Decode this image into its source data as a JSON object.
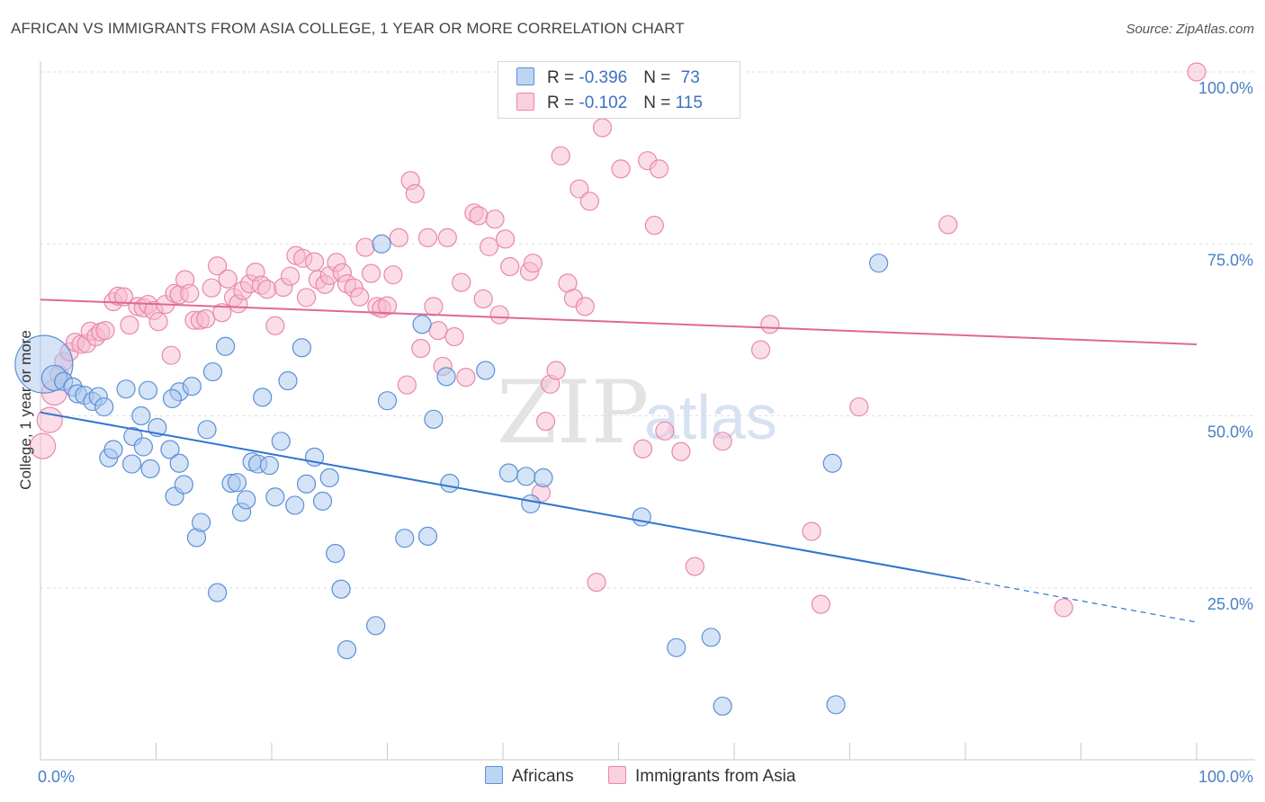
{
  "header": {
    "title": "AFRICAN VS IMMIGRANTS FROM ASIA COLLEGE, 1 YEAR OR MORE CORRELATION CHART",
    "source": "Source: ZipAtlas.com"
  },
  "legend": {
    "rows": [
      {
        "r_label": "R = ",
        "r_value": "-0.396",
        "n_label": "N = ",
        "n_value": "73"
      },
      {
        "r_label": "R = ",
        "r_value": "-0.102",
        "n_label": "N = ",
        "n_value": "115"
      }
    ]
  },
  "bottom_legend": {
    "africans": "Africans",
    "asia": "Immigrants from Asia"
  },
  "watermark": {
    "zip": "ZIP",
    "atlas": "atlas"
  },
  "colors": {
    "africans_fill": "#a9c8ee",
    "africans_stroke": "#5a8fd6",
    "africans_line": "#2f74d0",
    "asia_fill": "#f7bcd0",
    "asia_stroke": "#e987a8",
    "asia_line": "#e0679a",
    "grid": "#dddddd",
    "tick": "#4a7fc6"
  },
  "chart_data": {
    "type": "scatter",
    "title": "AFRICAN VS IMMIGRANTS FROM ASIA COLLEGE, 1 YEAR OR MORE CORRELATION CHART",
    "xlabel": "",
    "ylabel": "College, 1 year or more",
    "xlim": [
      0,
      100
    ],
    "ylim": [
      0,
      102
    ],
    "x_tick_labels": [
      "0.0%",
      "100.0%"
    ],
    "y_ticks": [
      25,
      50,
      75,
      100
    ],
    "y_tick_labels": [
      "25.0%",
      "50.0%",
      "75.0%",
      "100.0%"
    ],
    "grid": true,
    "series": [
      {
        "name": "Africans",
        "r": -0.396,
        "n": 73,
        "trend": {
          "x0": 0,
          "y0": 50.5,
          "x1": 80,
          "y1": 26.2,
          "dashed_to": 100,
          "dashed_y": 20
        },
        "points": [
          [
            0.3,
            57.5,
            3.2
          ],
          [
            1.2,
            55.5,
            1.4
          ],
          [
            2.0,
            55,
            1
          ],
          [
            2.8,
            54.2,
            1
          ],
          [
            3.2,
            53.2,
            1
          ],
          [
            3.8,
            53,
            1
          ],
          [
            4.5,
            52.1,
            1
          ],
          [
            5.0,
            52.8,
            1
          ],
          [
            5.5,
            51.3,
            1
          ],
          [
            5.9,
            43.9,
            1
          ],
          [
            6.3,
            45.1,
            1
          ],
          [
            8.0,
            47,
            1
          ],
          [
            8.7,
            50,
            1
          ],
          [
            7.4,
            53.9,
            1
          ],
          [
            9.3,
            53.7,
            1
          ],
          [
            7.9,
            43,
            1
          ],
          [
            8.9,
            45.5,
            1
          ],
          [
            9.5,
            42.3,
            1
          ],
          [
            10.1,
            48.3,
            1
          ],
          [
            11.2,
            45.1,
            1
          ],
          [
            12.0,
            53.5,
            1
          ],
          [
            11.4,
            52.5,
            1
          ],
          [
            12.0,
            43.1,
            1
          ],
          [
            11.6,
            38.3,
            1
          ],
          [
            12.4,
            40,
            1
          ],
          [
            13.1,
            54.3,
            1
          ],
          [
            13.5,
            32.3,
            1
          ],
          [
            13.9,
            34.5,
            1
          ],
          [
            14.4,
            48,
            1
          ],
          [
            14.9,
            56.4,
            1
          ],
          [
            15.3,
            24.3,
            1
          ],
          [
            16.0,
            60.1,
            1
          ],
          [
            16.5,
            40.2,
            1
          ],
          [
            17.0,
            40.3,
            1
          ],
          [
            17.4,
            36,
            1
          ],
          [
            17.8,
            37.8,
            1
          ],
          [
            18.3,
            43.3,
            1
          ],
          [
            18.8,
            43,
            1
          ],
          [
            19.2,
            52.7,
            1
          ],
          [
            19.8,
            42.8,
            1
          ],
          [
            20.3,
            38.2,
            1
          ],
          [
            20.8,
            46.3,
            1
          ],
          [
            21.4,
            55.1,
            1
          ],
          [
            22.0,
            37,
            1
          ],
          [
            22.6,
            59.9,
            1
          ],
          [
            23.0,
            40.1,
            1
          ],
          [
            23.7,
            44,
            1
          ],
          [
            24.4,
            37.6,
            1
          ],
          [
            25.0,
            41,
            1
          ],
          [
            25.5,
            30,
            1
          ],
          [
            26.0,
            24.8,
            1
          ],
          [
            26.5,
            16,
            1
          ],
          [
            29.0,
            19.5,
            1
          ],
          [
            29.5,
            75,
            1
          ],
          [
            30.0,
            52.2,
            1
          ],
          [
            31.5,
            32.2,
            1
          ],
          [
            33.5,
            32.5,
            1
          ],
          [
            33.0,
            63.3,
            1
          ],
          [
            34.0,
            49.5,
            1
          ],
          [
            35.1,
            55.7,
            1
          ],
          [
            35.4,
            40.2,
            1
          ],
          [
            38.5,
            56.6,
            1
          ],
          [
            40.5,
            41.7,
            1
          ],
          [
            42.0,
            41.2,
            1
          ],
          [
            42.4,
            37.2,
            1
          ],
          [
            43.5,
            41,
            1
          ],
          [
            52.0,
            35.3,
            1
          ],
          [
            55.0,
            16.3,
            1
          ],
          [
            58.0,
            17.8,
            1
          ],
          [
            59.0,
            7.8,
            1
          ],
          [
            68.5,
            43.1,
            1
          ],
          [
            68.8,
            8,
            1
          ],
          [
            72.5,
            72.2,
            1
          ]
        ]
      },
      {
        "name": "Immigrants from Asia",
        "r": -0.102,
        "n": 115,
        "trend": {
          "x0": 0,
          "y0": 66.9,
          "x1": 100,
          "y1": 60.4
        },
        "points": [
          [
            0.2,
            45.6,
            1.4
          ],
          [
            0.8,
            49.4,
            1.4
          ],
          [
            1.2,
            53.4,
            1.4
          ],
          [
            1.6,
            56,
            1
          ],
          [
            2.0,
            57.9,
            1
          ],
          [
            2.5,
            59.3,
            1
          ],
          [
            3.0,
            60.7,
            1
          ],
          [
            3.5,
            60.4,
            1
          ],
          [
            4.0,
            60.5,
            1
          ],
          [
            4.3,
            62.3,
            1
          ],
          [
            4.8,
            61.5,
            1
          ],
          [
            5.2,
            62.2,
            1
          ],
          [
            5.6,
            62.4,
            1
          ],
          [
            6.3,
            66.6,
            1
          ],
          [
            6.7,
            67.4,
            1
          ],
          [
            7.2,
            67.3,
            1
          ],
          [
            7.7,
            63.2,
            1
          ],
          [
            8.4,
            65.9,
            1
          ],
          [
            8.9,
            65.7,
            1
          ],
          [
            9.3,
            66.2,
            1
          ],
          [
            9.8,
            65.3,
            1
          ],
          [
            10.2,
            63.7,
            1
          ],
          [
            10.8,
            66.2,
            1
          ],
          [
            11.3,
            58.8,
            1
          ],
          [
            11.6,
            67.8,
            1
          ],
          [
            12.0,
            67.6,
            1
          ],
          [
            12.5,
            69.8,
            1
          ],
          [
            12.9,
            67.8,
            1
          ],
          [
            13.3,
            63.9,
            1
          ],
          [
            13.8,
            63.9,
            1
          ],
          [
            14.3,
            64.1,
            1
          ],
          [
            14.8,
            68.6,
            1
          ],
          [
            15.3,
            71.8,
            1
          ],
          [
            15.7,
            65,
            1
          ],
          [
            16.2,
            69.9,
            1
          ],
          [
            16.7,
            67.2,
            1
          ],
          [
            17.1,
            66.3,
            1
          ],
          [
            17.5,
            68.2,
            1
          ],
          [
            18.1,
            69.2,
            1
          ],
          [
            18.6,
            70.9,
            1
          ],
          [
            19.1,
            69,
            1
          ],
          [
            19.6,
            68.4,
            1
          ],
          [
            20.3,
            63.1,
            1
          ],
          [
            21.0,
            68.7,
            1
          ],
          [
            21.6,
            70.3,
            1
          ],
          [
            22.1,
            73.3,
            1
          ],
          [
            22.7,
            72.9,
            1
          ],
          [
            23.0,
            67.2,
            1
          ],
          [
            23.7,
            72.4,
            1
          ],
          [
            24.0,
            69.8,
            1
          ],
          [
            24.6,
            69.1,
            1
          ],
          [
            25.0,
            70.4,
            1
          ],
          [
            25.6,
            72.3,
            1
          ],
          [
            26.1,
            70.8,
            1
          ],
          [
            26.5,
            69.2,
            1
          ],
          [
            27.1,
            68.6,
            1
          ],
          [
            27.6,
            67.3,
            1
          ],
          [
            28.1,
            74.5,
            1
          ],
          [
            28.6,
            70.7,
            1
          ],
          [
            29.1,
            65.9,
            1
          ],
          [
            29.5,
            65.6,
            1
          ],
          [
            30.0,
            66,
            1
          ],
          [
            30.5,
            70.5,
            1
          ],
          [
            31.0,
            75.9,
            1
          ],
          [
            31.7,
            54.5,
            1
          ],
          [
            32.0,
            84.2,
            1
          ],
          [
            32.4,
            82.3,
            1
          ],
          [
            32.9,
            59.8,
            1
          ],
          [
            33.5,
            75.9,
            1
          ],
          [
            34.0,
            65.9,
            1
          ],
          [
            34.4,
            62.4,
            1
          ],
          [
            34.8,
            57.2,
            1
          ],
          [
            35.2,
            75.9,
            1
          ],
          [
            35.8,
            61.5,
            1
          ],
          [
            36.4,
            69.4,
            1
          ],
          [
            36.8,
            55.6,
            1
          ],
          [
            37.5,
            79.5,
            1
          ],
          [
            37.9,
            79.1,
            1
          ],
          [
            38.3,
            67,
            1
          ],
          [
            38.8,
            74.6,
            1
          ],
          [
            39.3,
            78.6,
            1
          ],
          [
            39.7,
            64.7,
            1
          ],
          [
            40.2,
            75.7,
            1
          ],
          [
            40.6,
            71.7,
            1
          ],
          [
            42.3,
            71,
            1
          ],
          [
            42.6,
            72.2,
            1
          ],
          [
            43.3,
            38.8,
            1
          ],
          [
            43.7,
            49.2,
            1
          ],
          [
            44.1,
            54.6,
            1
          ],
          [
            44.6,
            56.6,
            1
          ],
          [
            45.0,
            87.8,
            1
          ],
          [
            45.6,
            69.3,
            1
          ],
          [
            46.1,
            67.1,
            1
          ],
          [
            46.6,
            83,
            1
          ],
          [
            47.1,
            65.9,
            1
          ],
          [
            47.5,
            81.2,
            1
          ],
          [
            48.1,
            25.8,
            1
          ],
          [
            48.6,
            91.9,
            1
          ],
          [
            50.2,
            85.9,
            1
          ],
          [
            52.1,
            45.2,
            1
          ],
          [
            52.5,
            87.1,
            1
          ],
          [
            53.1,
            77.7,
            1
          ],
          [
            53.5,
            85.9,
            1
          ],
          [
            54.0,
            47.8,
            1
          ],
          [
            55.4,
            44.8,
            1
          ],
          [
            56.6,
            28.1,
            1
          ],
          [
            59.0,
            46.3,
            1
          ],
          [
            62.3,
            59.6,
            1
          ],
          [
            63.1,
            63.3,
            1
          ],
          [
            66.7,
            33.2,
            1
          ],
          [
            67.5,
            22.6,
            1
          ],
          [
            70.8,
            51.3,
            1
          ],
          [
            78.5,
            77.8,
            1
          ],
          [
            88.5,
            22.1,
            1
          ],
          [
            100.0,
            100,
            1
          ]
        ]
      }
    ]
  }
}
